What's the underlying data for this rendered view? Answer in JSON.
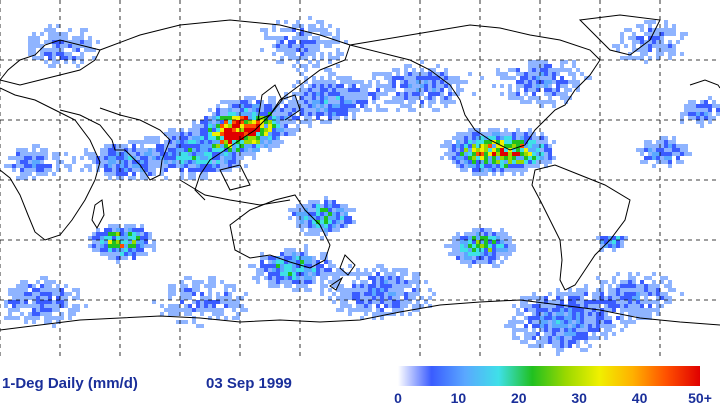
{
  "map": {
    "title": "",
    "legend": {
      "product": "1-Deg Daily (mm/d)",
      "date": "03 Sep 1999",
      "colorbar": {
        "min": 0,
        "max": 50,
        "ticks": [
          "0",
          "10",
          "20",
          "30",
          "40",
          "50+"
        ],
        "colors": [
          "#ffffff",
          "#3a5cff",
          "#5aa8ff",
          "#3fe0e8",
          "#20c020",
          "#9ad800",
          "#f0f000",
          "#ffb000",
          "#ff5000",
          "#e00000"
        ]
      }
    },
    "grid": {
      "lat_lines_deg": [
        60,
        30,
        0,
        -30,
        -60
      ],
      "lon_lines_deg": [
        -150,
        -120,
        -90,
        -60,
        -30,
        0,
        30,
        60,
        90,
        120,
        150
      ],
      "style": "dashed"
    },
    "map_extent": {
      "lon": [
        0,
        360
      ],
      "lat": [
        -90,
        90
      ]
    }
  }
}
